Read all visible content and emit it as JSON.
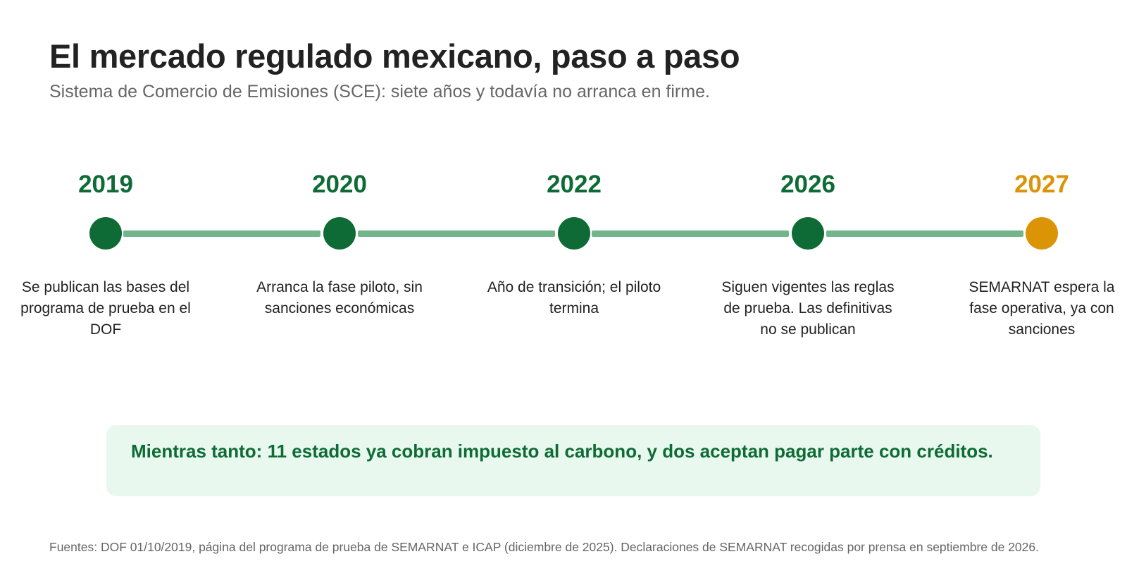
{
  "header": {
    "title": "El mercado regulado mexicano, paso a paso",
    "subtitle": "Sistema de Comercio de Emisiones (SCE): siete años y todavía no arranca en firme."
  },
  "colors": {
    "past": "#0e6b35",
    "future": "#dc9407",
    "connector": "#73b58a",
    "callout_bg": "#e8f8ee"
  },
  "timeline": {
    "events": [
      {
        "year": "2019",
        "description": "Se publican las bases del programa de prueba en el DOF",
        "status": "past"
      },
      {
        "year": "2020",
        "description": "Arranca la fase piloto, sin sanciones económicas",
        "status": "past"
      },
      {
        "year": "2022",
        "description": "Año de transición; el piloto termina",
        "status": "past"
      },
      {
        "year": "2026",
        "description": "Siguen vigentes las reglas de prueba. Las definitivas no se publican",
        "status": "past"
      },
      {
        "year": "2027",
        "description": "SEMARNAT espera la fase operativa, ya con sanciones",
        "status": "future"
      }
    ]
  },
  "callout": {
    "text": "Mientras tanto: 11 estados ya cobran impuesto al carbono, y dos aceptan pagar parte con créditos."
  },
  "footer": {
    "sources": "Fuentes: DOF 01/10/2019, página del programa de prueba de SEMARNAT e ICAP (diciembre de 2025). Declaraciones de SEMARNAT recogidas por prensa en septiembre de 2026."
  }
}
